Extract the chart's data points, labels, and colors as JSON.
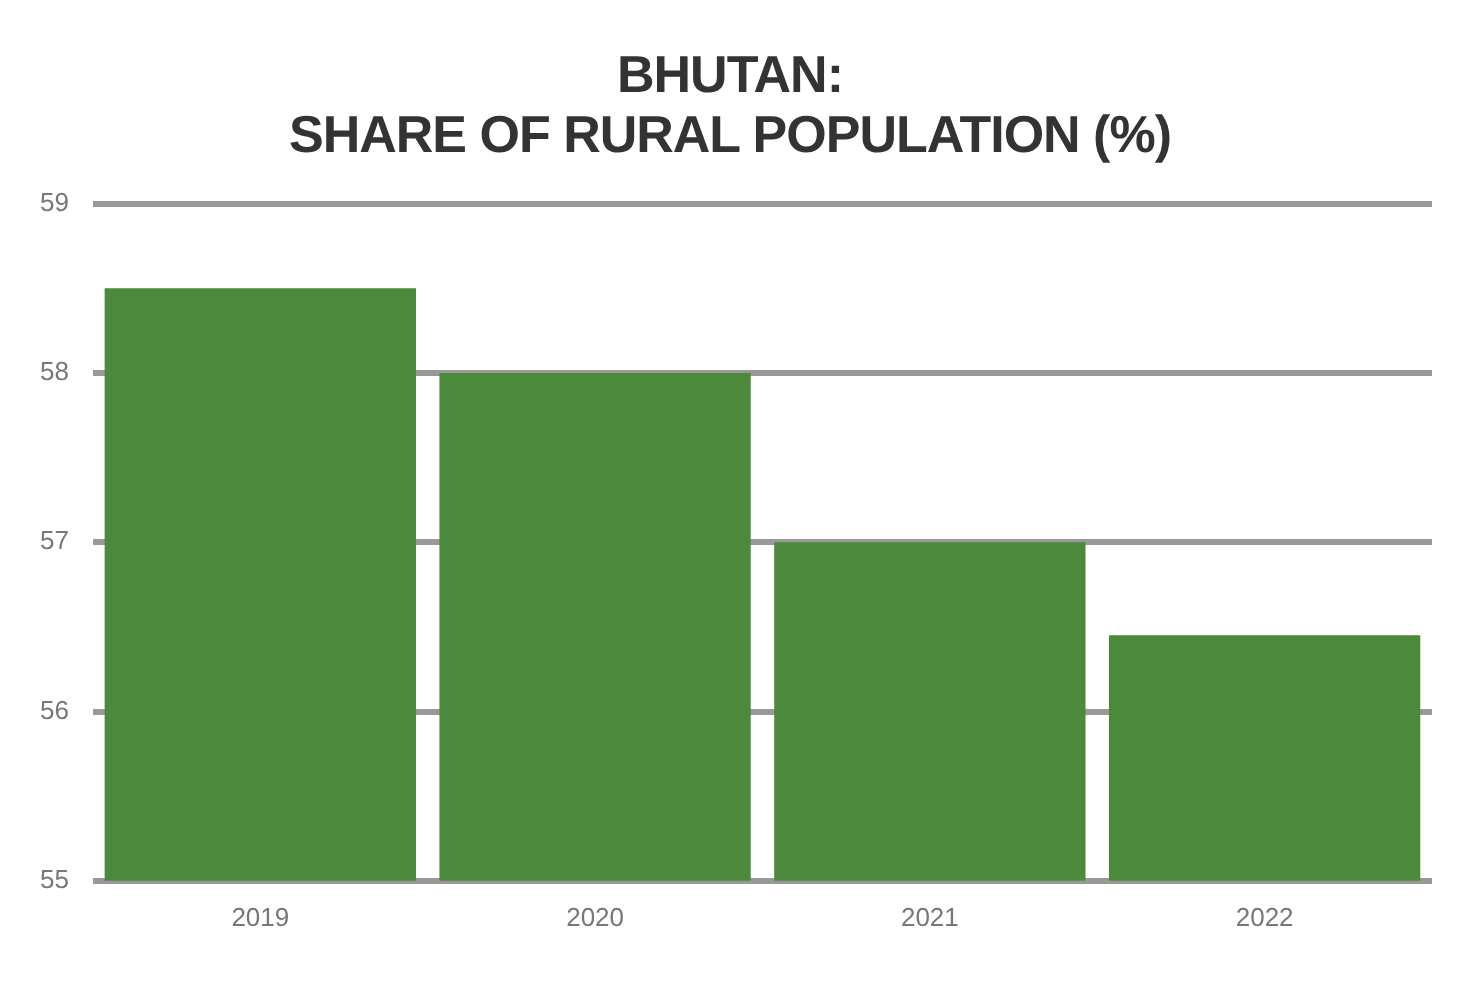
{
  "chart_data": {
    "type": "bar",
    "title": "BHUTAN:",
    "subtitle": "SHARE OF RURAL POPULATION (%)",
    "categories": [
      "2019",
      "2020",
      "2021",
      "2022"
    ],
    "values": [
      58.5,
      58.0,
      57.0,
      56.45
    ],
    "color": "#4a8a3a",
    "ylim": [
      55,
      59
    ],
    "yticks": [
      55,
      56,
      57,
      58,
      59
    ],
    "grid": "y"
  }
}
